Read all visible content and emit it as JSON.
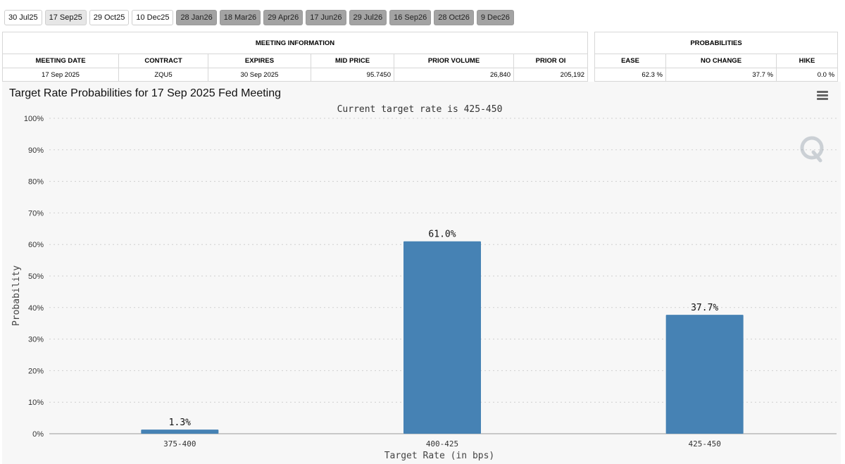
{
  "tabs": [
    {
      "label": "30 Jul25",
      "state": "normal"
    },
    {
      "label": "17 Sep25",
      "state": "selected"
    },
    {
      "label": "29 Oct25",
      "state": "normal"
    },
    {
      "label": "10 Dec25",
      "state": "normal"
    },
    {
      "label": "28 Jan26",
      "state": "future"
    },
    {
      "label": "18 Mar26",
      "state": "future"
    },
    {
      "label": "29 Apr26",
      "state": "future"
    },
    {
      "label": "17 Jun26",
      "state": "future"
    },
    {
      "label": "29 Jul26",
      "state": "future"
    },
    {
      "label": "16 Sep26",
      "state": "future"
    },
    {
      "label": "28 Oct26",
      "state": "future"
    },
    {
      "label": "9 Dec26",
      "state": "future"
    }
  ],
  "meeting_info": {
    "title": "MEETING INFORMATION",
    "headers": [
      "MEETING DATE",
      "CONTRACT",
      "EXPIRES",
      "MID PRICE",
      "PRIOR VOLUME",
      "PRIOR OI"
    ],
    "row": [
      "17 Sep 2025",
      "ZQU5",
      "30 Sep 2025",
      "95.7450",
      "26,840",
      "205,192"
    ]
  },
  "probabilities": {
    "title": "PROBABILITIES",
    "headers": [
      "EASE",
      "NO CHANGE",
      "HIKE"
    ],
    "row": [
      "62.3 %",
      "37.7 %",
      "0.0 %"
    ]
  },
  "chart_data": {
    "type": "bar",
    "title": "Target Rate Probabilities for 17 Sep 2025 Fed Meeting",
    "subtitle": "Current target rate is 425-450",
    "xlabel": "Target Rate (in bps)",
    "ylabel": "Probability",
    "categories": [
      "375-400",
      "400-425",
      "425-450"
    ],
    "values": [
      1.3,
      61.0,
      37.7
    ],
    "data_labels": [
      "1.3%",
      "61.0%",
      "37.7%"
    ],
    "ylim": [
      0,
      100
    ],
    "yticks": [
      0,
      10,
      20,
      30,
      40,
      50,
      60,
      70,
      80,
      90,
      100
    ],
    "ytick_labels": [
      "0%",
      "10%",
      "20%",
      "30%",
      "40%",
      "50%",
      "60%",
      "70%",
      "80%",
      "90%",
      "100%"
    ],
    "grid": true,
    "bar_color": "#4682b4"
  },
  "watermark_icon": "q-logo-icon",
  "menu_icon": "hamburger-menu-icon"
}
